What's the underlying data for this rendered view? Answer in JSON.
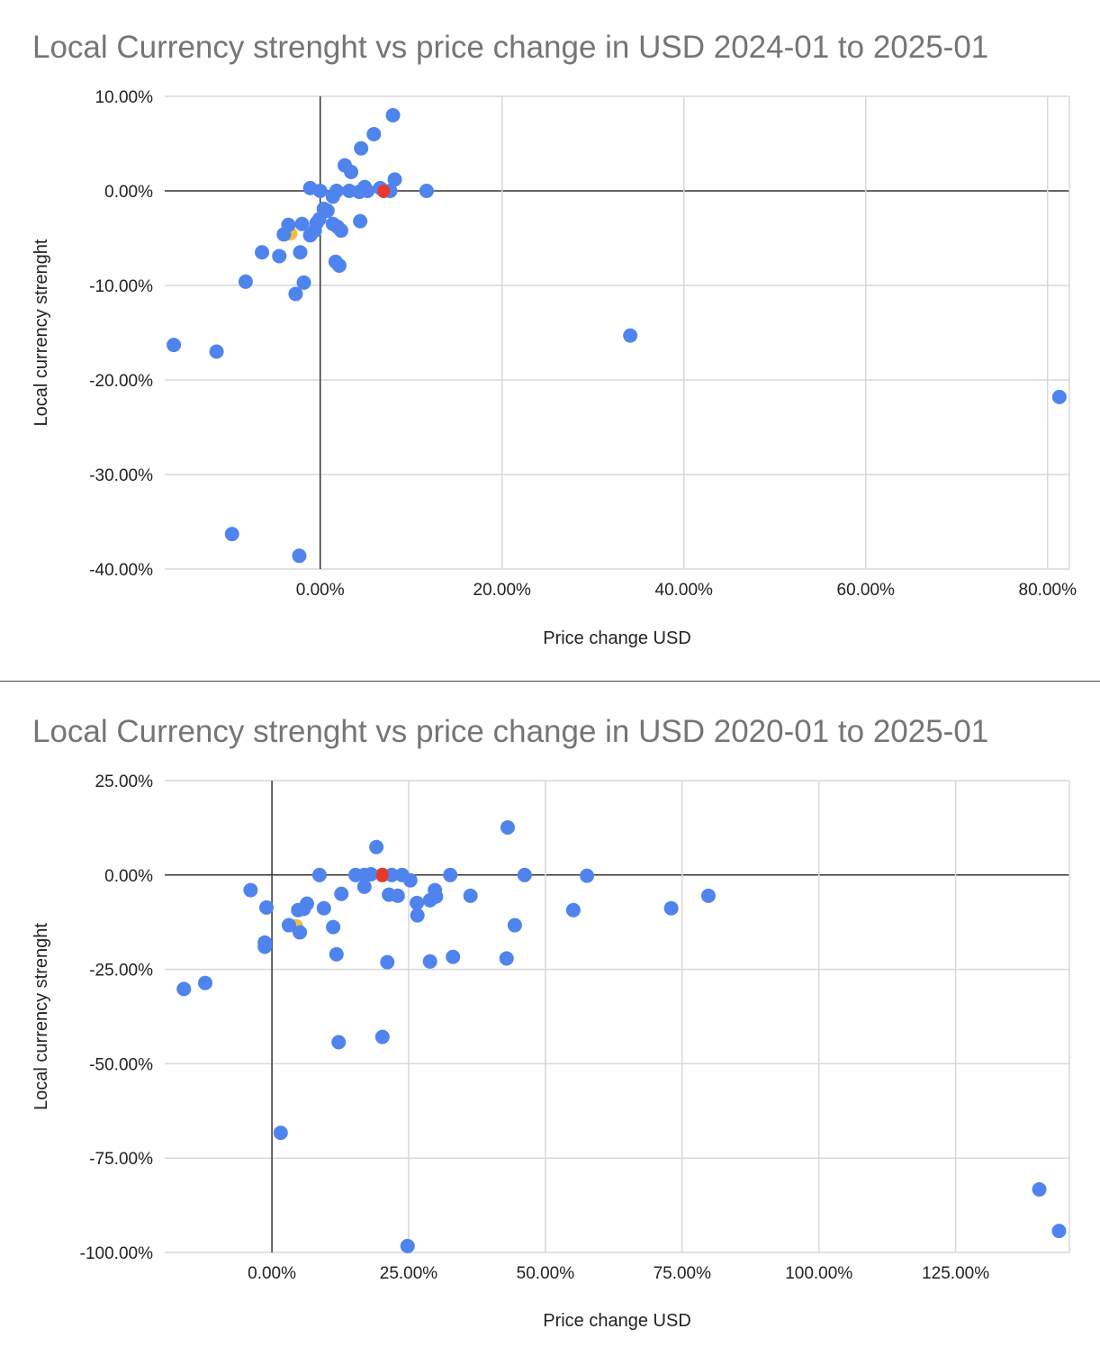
{
  "chart_data": [
    {
      "type": "scatter",
      "title": "Local Currency strenght vs price change in USD 2024-01 to 2025-01",
      "xlabel": "Price change USD",
      "ylabel": "Local currency strenght",
      "xlim": [
        -17.1,
        82.4
      ],
      "ylim": [
        -40,
        10
      ],
      "xticks": [
        0,
        20,
        40,
        60,
        80
      ],
      "xtick_labels": [
        "0.00%",
        "20.00%",
        "40.00%",
        "60.00%",
        "80.00%"
      ],
      "yticks": [
        10,
        0,
        -10,
        -20,
        -30,
        -40
      ],
      "ytick_labels": [
        "10.00%",
        "0.00%",
        "-10.00%",
        "-20.00%",
        "-30.00%",
        "-40.00%"
      ],
      "grid": true,
      "colors": {
        "default": "#4f84ee",
        "red": "#e8382a",
        "yellow": "#f2be3c"
      },
      "points": [
        [
          8.0,
          8.0
        ],
        [
          5.9,
          6.0
        ],
        [
          4.5,
          4.5
        ],
        [
          2.7,
          2.7
        ],
        [
          3.4,
          2.0
        ],
        [
          -1.1,
          0.3
        ],
        [
          0,
          0
        ],
        [
          1.4,
          -0.6
        ],
        [
          1.8,
          0
        ],
        [
          3.2,
          0
        ],
        [
          4.3,
          -0.1
        ],
        [
          4.9,
          0.4
        ],
        [
          5.2,
          0
        ],
        [
          6.6,
          0.3
        ],
        [
          7.7,
          0
        ],
        [
          8.2,
          1.2
        ],
        [
          11.7,
          0
        ],
        [
          0.4,
          -1.9
        ],
        [
          0.8,
          -2.1
        ],
        [
          -0.1,
          -3.0
        ],
        [
          -0.4,
          -3.4
        ],
        [
          -2.0,
          -3.5
        ],
        [
          -3.5,
          -3.6
        ],
        [
          1.4,
          -3.5
        ],
        [
          1.9,
          -3.8
        ],
        [
          2.3,
          -4.2
        ],
        [
          -0.6,
          -4.2
        ],
        [
          -1.1,
          -4.7
        ],
        [
          -4.0,
          -4.6
        ],
        [
          4.4,
          -3.2
        ],
        [
          -6.4,
          -6.5
        ],
        [
          -4.5,
          -6.9
        ],
        [
          -2.2,
          -6.5
        ],
        [
          1.7,
          -7.5
        ],
        [
          2.1,
          -7.9
        ],
        [
          -8.2,
          -9.6
        ],
        [
          -1.8,
          -9.7
        ],
        [
          -2.7,
          -10.9
        ],
        [
          -16.1,
          -16.3
        ],
        [
          -11.4,
          -17.0
        ],
        [
          34.1,
          -15.3
        ],
        [
          81.3,
          -21.8
        ],
        [
          -9.7,
          -36.3
        ],
        [
          -2.3,
          -38.6
        ]
      ],
      "highlight_points": [
        {
          "x": 7.0,
          "y": 0,
          "color": "red"
        },
        {
          "x": -3.3,
          "y": -4.5,
          "color": "yellow"
        }
      ]
    },
    {
      "type": "scatter",
      "title": "Local Currency strenght vs price change in USD 2020-01 to 2025-01",
      "xlabel": "Price change USD",
      "ylabel": "Local currency strenght",
      "xlim": [
        -19.6,
        145.8
      ],
      "ylim": [
        -100,
        25
      ],
      "xticks": [
        0,
        25,
        50,
        75,
        100,
        125
      ],
      "xtick_labels": [
        "0.00%",
        "25.00%",
        "50.00%",
        "75.00%",
        "100.00%",
        "125.00%"
      ],
      "yticks": [
        25,
        0,
        -25,
        -50,
        -75,
        -100
      ],
      "ytick_labels": [
        "25.00%",
        "0.00%",
        "-25.00%",
        "-50.00%",
        "-75.00%",
        "-100.00%"
      ],
      "grid": true,
      "colors": {
        "default": "#4f84ee",
        "red": "#e8382a",
        "yellow": "#f2be3c"
      },
      "points": [
        [
          43.1,
          12.6
        ],
        [
          19.1,
          7.4
        ],
        [
          8.7,
          0
        ],
        [
          15.3,
          0
        ],
        [
          16.9,
          0
        ],
        [
          18.1,
          0.2
        ],
        [
          21.9,
          0
        ],
        [
          23.8,
          0
        ],
        [
          25.3,
          -1.4
        ],
        [
          32.6,
          0
        ],
        [
          46.2,
          0
        ],
        [
          57.6,
          -0.2
        ],
        [
          -3.9,
          -4.0
        ],
        [
          16.9,
          -3.1
        ],
        [
          21.4,
          -5.2
        ],
        [
          23.0,
          -5.5
        ],
        [
          29.8,
          -4.0
        ],
        [
          30.0,
          -5.7
        ],
        [
          26.5,
          -7.4
        ],
        [
          28.9,
          -6.7
        ],
        [
          36.3,
          -5.5
        ],
        [
          79.8,
          -5.5
        ],
        [
          12.7,
          -5.0
        ],
        [
          6.4,
          -7.6
        ],
        [
          5.8,
          -9.0
        ],
        [
          4.8,
          -9.3
        ],
        [
          9.5,
          -8.8
        ],
        [
          -1.0,
          -8.6
        ],
        [
          55.1,
          -9.3
        ],
        [
          73.0,
          -8.8
        ],
        [
          26.6,
          -10.7
        ],
        [
          11.2,
          -13.8
        ],
        [
          3.1,
          -13.3
        ],
        [
          5.1,
          -15.2
        ],
        [
          44.4,
          -13.3
        ],
        [
          -1.3,
          -17.9
        ],
        [
          -1.3,
          -19.0
        ],
        [
          11.8,
          -21.0
        ],
        [
          21.1,
          -23.1
        ],
        [
          28.9,
          -22.9
        ],
        [
          33.1,
          -21.7
        ],
        [
          42.9,
          -22.1
        ],
        [
          -16.1,
          -30.2
        ],
        [
          -12.2,
          -28.6
        ],
        [
          12.2,
          -44.3
        ],
        [
          20.2,
          -42.9
        ],
        [
          1.6,
          -68.3
        ],
        [
          24.8,
          -98.3
        ],
        [
          140.3,
          -83.3
        ],
        [
          143.9,
          -94.3
        ]
      ],
      "highlight_points": [
        {
          "x": 20.2,
          "y": 0,
          "color": "red"
        },
        {
          "x": 4.4,
          "y": -13.6,
          "color": "yellow"
        }
      ]
    }
  ]
}
